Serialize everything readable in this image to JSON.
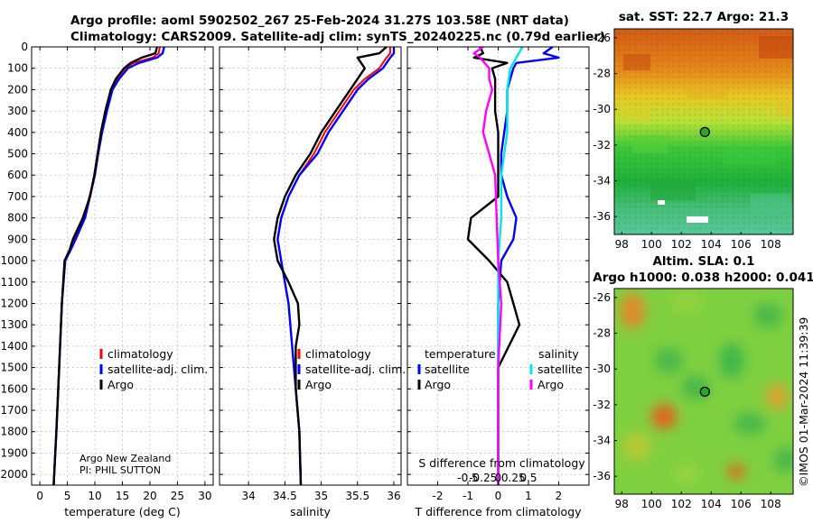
{
  "header": {
    "title_line1": "Argo profile: aoml 5902502_267 25-Feb-2024 31.27S 103.58E (NRT data)",
    "title_line2": "Climatology: CARS2009. Satellite-adj clim: synTS_20240225.nc (0.79d earlier)"
  },
  "depth_axis": {
    "ylim": [
      0,
      2050
    ],
    "ticks": [
      0,
      100,
      200,
      300,
      400,
      500,
      600,
      700,
      800,
      900,
      1000,
      1100,
      1200,
      1300,
      1400,
      1500,
      1600,
      1700,
      1800,
      1900,
      2000
    ],
    "tick_labels": [
      "0",
      "100",
      "200",
      "300",
      "400",
      "500",
      "600",
      "700",
      "800",
      "900",
      "1000",
      "1100",
      "1200",
      "1300",
      "1400",
      "1500",
      "1600",
      "1700",
      "1800",
      "1900",
      "2000"
    ]
  },
  "colors": {
    "climatology": "#ff0000",
    "satellite_adj": "#0000ff",
    "argo": "#000000",
    "satellite": "#00e5e5",
    "argo_salinity": "#ff00ff",
    "grid": "#b0b0b0"
  },
  "legend": {
    "climatology": "climatology",
    "satellite_adj": "satellite-adj. clim.",
    "argo": "Argo",
    "temperature": "temperature",
    "salinity": "salinity",
    "satellite": "satellite"
  },
  "credits": {
    "line1": "Argo New Zealand",
    "line2": "PI: PHIL SUTTON",
    "imos": "©IMOS 01-Mar-2024 11:39:39"
  },
  "chart_data": [
    {
      "id": "temperature",
      "type": "line",
      "xlabel": "temperature (deg C)",
      "xlim": [
        -1.5,
        31.5
      ],
      "xticks": [
        0,
        5,
        10,
        15,
        20,
        25,
        30
      ],
      "xtick_labels": [
        "0",
        "5",
        "10",
        "15",
        "20",
        "25",
        "30"
      ],
      "series": [
        {
          "name": "climatology",
          "depth": [
            0,
            30,
            50,
            75,
            100,
            150,
            200,
            300,
            400,
            500,
            600,
            700,
            800,
            900,
            950,
            1000,
            1200,
            1500,
            1800,
            2000,
            2050
          ],
          "values": [
            21.8,
            21.6,
            20.5,
            17.0,
            15.5,
            14.0,
            13.0,
            12.0,
            11.2,
            10.5,
            10.0,
            9.0,
            8.0,
            6.3,
            5.5,
            4.5,
            4.0,
            3.5,
            3.0,
            2.6,
            2.5
          ]
        },
        {
          "name": "satellite-adj. clim.",
          "depth": [
            0,
            30,
            50,
            75,
            100,
            150,
            200,
            300,
            400,
            500,
            600,
            700,
            800,
            900,
            950,
            1000,
            1200,
            1500,
            1800,
            2000,
            2050
          ],
          "values": [
            22.6,
            22.3,
            21.3,
            18.0,
            16.0,
            14.4,
            13.2,
            12.2,
            11.3,
            10.6,
            10.0,
            9.1,
            8.2,
            6.5,
            5.6,
            4.6,
            4.0,
            3.5,
            3.0,
            2.6,
            2.5
          ]
        },
        {
          "name": "Argo",
          "depth": [
            0,
            30,
            50,
            75,
            100,
            150,
            200,
            300,
            400,
            500,
            600,
            700,
            800,
            900,
            950,
            1000,
            1200,
            1500,
            1800,
            2000,
            2050
          ],
          "values": [
            21.3,
            21.0,
            18.5,
            16.5,
            15.3,
            13.8,
            12.9,
            11.9,
            11.1,
            10.5,
            9.9,
            9.1,
            7.8,
            6.0,
            5.4,
            4.5,
            4.0,
            3.5,
            3.0,
            2.6,
            2.5
          ]
        }
      ]
    },
    {
      "id": "salinity",
      "type": "line",
      "xlabel": "salinity",
      "xlim": [
        33.6,
        36.1
      ],
      "xticks": [
        34,
        34.5,
        35,
        35.5,
        36
      ],
      "xtick_labels": [
        "34",
        "34.5",
        "35",
        "35.5",
        "36"
      ],
      "series": [
        {
          "name": "climatology",
          "depth": [
            0,
            30,
            50,
            100,
            150,
            200,
            300,
            400,
            500,
            600,
            700,
            800,
            900,
            1000,
            1200,
            1400,
            1600,
            1800,
            2050
          ],
          "values": [
            35.95,
            35.95,
            35.9,
            35.8,
            35.6,
            35.45,
            35.25,
            35.05,
            34.9,
            34.7,
            34.55,
            34.45,
            34.4,
            34.45,
            34.55,
            34.6,
            34.65,
            34.7,
            34.72
          ]
        },
        {
          "name": "satellite-adj. clim.",
          "depth": [
            0,
            30,
            50,
            100,
            150,
            200,
            300,
            400,
            500,
            600,
            700,
            800,
            900,
            1000,
            1200,
            1400,
            1600,
            1800,
            2050
          ],
          "values": [
            36.0,
            36.0,
            35.95,
            35.85,
            35.65,
            35.5,
            35.3,
            35.1,
            34.95,
            34.7,
            34.55,
            34.45,
            34.4,
            34.45,
            34.55,
            34.6,
            34.65,
            34.7,
            34.72
          ]
        },
        {
          "name": "Argo",
          "depth": [
            0,
            30,
            50,
            100,
            150,
            200,
            300,
            400,
            500,
            600,
            700,
            800,
            900,
            1000,
            1100,
            1200,
            1300,
            1400,
            1600,
            1800,
            2050
          ],
          "values": [
            35.9,
            35.8,
            35.5,
            35.6,
            35.5,
            35.4,
            35.2,
            35.0,
            34.85,
            34.65,
            34.5,
            34.4,
            34.35,
            34.4,
            34.55,
            34.68,
            34.7,
            34.65,
            34.65,
            34.7,
            34.72
          ]
        }
      ]
    },
    {
      "id": "differences",
      "type": "line",
      "xlabel": "T difference from climatology",
      "xlabel_top": "S difference from climatology",
      "xlim": [
        -3,
        3
      ],
      "xticks": [
        -2,
        -1,
        0,
        1,
        2
      ],
      "xtick_labels": [
        "-2",
        "-1",
        "0",
        "1",
        "2"
      ],
      "s_tick_labels": [
        "-0.5",
        "-0.25",
        "0",
        "0.25",
        "0.5"
      ],
      "series": [
        {
          "name": "temperature satellite",
          "depth": [
            0,
            30,
            50,
            75,
            100,
            150,
            200,
            300,
            400,
            500,
            600,
            700,
            800,
            900,
            1000,
            1200,
            1500,
            1800,
            2050
          ],
          "values": [
            1.8,
            1.5,
            2.0,
            0.6,
            0.5,
            0.4,
            0.3,
            0.3,
            0.2,
            0.1,
            0.1,
            0.3,
            0.6,
            0.5,
            0.1,
            0.0,
            0.0,
            0.0,
            0.0
          ]
        },
        {
          "name": "temperature Argo",
          "depth": [
            0,
            30,
            50,
            75,
            100,
            150,
            200,
            300,
            400,
            500,
            600,
            700,
            800,
            900,
            1000,
            1100,
            1200,
            1300,
            1500,
            1800,
            2050
          ],
          "values": [
            -0.6,
            -0.5,
            -0.8,
            0.3,
            -0.2,
            -0.1,
            -0.1,
            -0.1,
            0.0,
            0.0,
            0.0,
            0.0,
            -0.9,
            -1.0,
            -0.3,
            0.3,
            0.5,
            0.7,
            0.0,
            0.0,
            0.0
          ]
        },
        {
          "name": "salinity satellite",
          "depth": [
            0,
            50,
            100,
            200,
            300,
            400,
            500,
            600,
            800,
            1000,
            1200,
            1500,
            1800,
            2050
          ],
          "values": [
            0.8,
            0.6,
            0.4,
            0.3,
            0.3,
            0.3,
            0.2,
            0.1,
            0.1,
            0.0,
            0.0,
            0.0,
            0.0,
            0.0
          ]
        },
        {
          "name": "salinity Argo",
          "depth": [
            0,
            30,
            50,
            100,
            150,
            200,
            300,
            400,
            500,
            600,
            800,
            1000,
            1200,
            1500,
            1800,
            2050
          ],
          "values": [
            -0.5,
            -0.8,
            -0.6,
            -0.3,
            -0.3,
            -0.2,
            -0.4,
            -0.5,
            -0.3,
            -0.1,
            -0.05,
            0.0,
            0.1,
            0.0,
            0.0,
            0.0
          ]
        }
      ]
    },
    {
      "id": "sst_map",
      "type": "heatmap",
      "title": "sat. SST: 22.7 Argo: 21.3",
      "xlim": [
        97.5,
        109.5
      ],
      "ylim": [
        -37,
        -25.5
      ],
      "xticks": [
        98,
        100,
        102,
        104,
        106,
        108
      ],
      "xtick_labels": [
        "98",
        "100",
        "102",
        "104",
        "106",
        "108"
      ],
      "yticks": [
        -26,
        -28,
        -30,
        -32,
        -34,
        -36
      ],
      "ytick_labels": [
        "-26",
        "-28",
        "-30",
        "-32",
        "-34",
        "-36"
      ],
      "argo_position": {
        "lon": 103.58,
        "lat": -31.27
      }
    },
    {
      "id": "sla_map",
      "type": "heatmap",
      "title": "Altim. SLA: 0.1",
      "subtitle": "Argo h1000: 0.038 h2000: 0.041",
      "xlim": [
        97.5,
        109.5
      ],
      "ylim": [
        -37,
        -25.5
      ],
      "xticks": [
        98,
        100,
        102,
        104,
        106,
        108
      ],
      "xtick_labels": [
        "98",
        "100",
        "102",
        "104",
        "106",
        "108"
      ],
      "yticks": [
        -26,
        -28,
        -30,
        -32,
        -34,
        -36
      ],
      "ytick_labels": [
        "-26",
        "-28",
        "-30",
        "-32",
        "-34",
        "-36"
      ],
      "argo_position": {
        "lon": 103.58,
        "lat": -31.27
      }
    }
  ]
}
